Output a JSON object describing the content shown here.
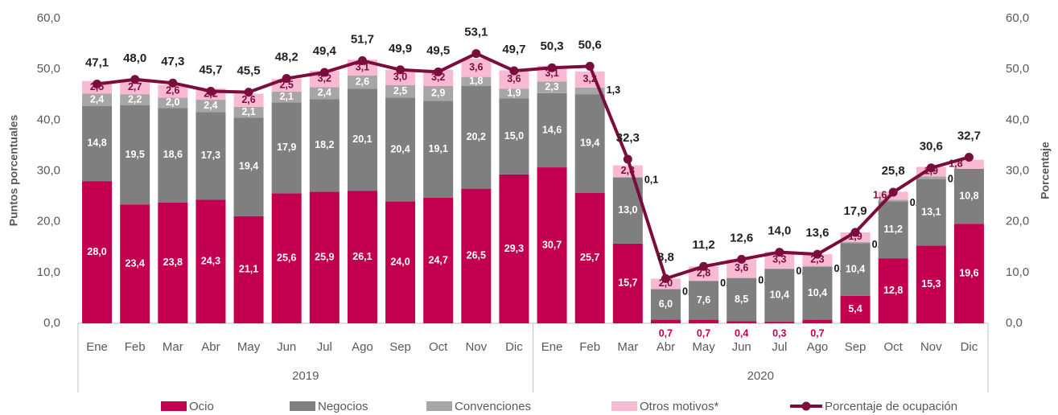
{
  "chart_data": {
    "type": "bar",
    "y_label": "Puntos porcentuales",
    "y2_label": "Porcentaje",
    "categories": [
      "Ene",
      "Feb",
      "Mar",
      "Abr",
      "May",
      "Jun",
      "Jul",
      "Ago",
      "Sep",
      "Oct",
      "Nov",
      "Dic",
      "Ene",
      "Feb",
      "Mar",
      "Abr",
      "May",
      "Jun",
      "Jul",
      "Ago",
      "Sep",
      "Oct",
      "Nov",
      "Dic"
    ],
    "groups": [
      "2019",
      "2020"
    ],
    "ylim": [
      0,
      60
    ],
    "yticks": [
      {
        "value": 0,
        "label": "0,0"
      },
      {
        "value": 10,
        "label": "10,0"
      },
      {
        "value": 20,
        "label": "20,0"
      },
      {
        "value": 30,
        "label": "30,0"
      },
      {
        "value": 40,
        "label": "40,0"
      },
      {
        "value": 50,
        "label": "50,0"
      },
      {
        "value": 60,
        "label": "60,0"
      }
    ],
    "y2lim": [
      0,
      60
    ],
    "y2ticks": [
      {
        "value": 0,
        "label": "0,0"
      },
      {
        "value": 10,
        "label": "10,0"
      },
      {
        "value": 20,
        "label": "20,0"
      },
      {
        "value": 30,
        "label": "30,0"
      },
      {
        "value": 40,
        "label": "40,0"
      },
      {
        "value": 50,
        "label": "50,0"
      },
      {
        "value": 60,
        "label": "60,0"
      }
    ],
    "series": [
      {
        "name": "Ocio",
        "type": "bar",
        "color": "#c3004f",
        "values": [
          28.0,
          23.4,
          23.8,
          24.3,
          21.1,
          25.6,
          25.9,
          26.1,
          24.0,
          24.7,
          26.5,
          29.3,
          30.7,
          25.7,
          15.7,
          0.7,
          0.7,
          0.4,
          0.3,
          0.7,
          5.4,
          12.8,
          15.3,
          19.6
        ],
        "value_labels": [
          "28,0",
          "23,4",
          "23,8",
          "24,3",
          "21,1",
          "25,6",
          "25,9",
          "26,1",
          "24,0",
          "24,7",
          "26,5",
          "29,3",
          "30,7",
          "25,7",
          "15,7",
          "0,7",
          "0,7",
          "0,4",
          "0,3",
          "0,7",
          "5,4",
          "12,8",
          "15,3",
          "19,6"
        ]
      },
      {
        "name": "Negocios",
        "type": "bar",
        "color": "#7f7f7f",
        "values": [
          14.8,
          19.5,
          18.6,
          17.3,
          19.4,
          17.9,
          18.2,
          20.1,
          20.4,
          19.1,
          20.2,
          15.0,
          14.6,
          19.4,
          13.0,
          6.0,
          7.6,
          8.5,
          10.4,
          10.4,
          10.4,
          11.2,
          13.1,
          10.8
        ],
        "value_labels": [
          "14,8",
          "19,5",
          "18,6",
          "17,3",
          "19,4",
          "17,9",
          "18,2",
          "20,1",
          "20,4",
          "19,1",
          "20,2",
          "15,0",
          "14,6",
          "19,4",
          "13,0",
          "6,0",
          "7,6",
          "8,5",
          "10,4",
          "10,4",
          "10,4",
          "11,2",
          "13,1",
          "10,8"
        ]
      },
      {
        "name": "Convenciones",
        "type": "bar",
        "color": "#a6a6a6",
        "values": [
          2.4,
          2.2,
          2.0,
          2.4,
          2.1,
          2.1,
          2.4,
          2.6,
          2.5,
          2.9,
          1.8,
          1.9,
          2.3,
          1.3,
          0.1,
          0.1,
          0.1,
          0.1,
          0.1,
          0.2,
          0.2,
          0.3,
          0.5,
          null
        ],
        "value_labels": [
          "2,4",
          "2,2",
          "2,0",
          "2,4",
          "2,1",
          "2,1",
          "2,4",
          "2,6",
          "2,5",
          "2,9",
          "1,8",
          "1,9",
          "2,3",
          "1,3",
          "0,1",
          "0,1",
          "0,1",
          "0,1",
          "0,1",
          "0,2",
          "0,2",
          "0,3",
          "0,5",
          null
        ]
      },
      {
        "name": "Otros motivos*",
        "type": "bar",
        "color": "#f8b9d3",
        "values": [
          2.5,
          2.7,
          2.6,
          2.2,
          2.6,
          2.5,
          3.2,
          3.1,
          3.0,
          3.2,
          3.6,
          3.6,
          3.1,
          3.2,
          2.3,
          2.0,
          2.8,
          3.6,
          3.3,
          2.3,
          1.9,
          1.6,
          1.9,
          1.8
        ],
        "value_labels": [
          "2,5",
          "2,7",
          "2,6",
          "2,2",
          "2,6",
          "2,5",
          "3,2",
          "3,1",
          "3,0",
          "3,2",
          "3,6",
          "3,6",
          "3,1",
          "3,2",
          "2,3",
          "2,0",
          "2,8",
          "3,6",
          "3,3",
          "2,3",
          "1,9",
          "1,6",
          "1,9",
          "1,8"
        ]
      },
      {
        "name": "Porcentaje de ocupación",
        "type": "line",
        "axis": "y2",
        "color": "#7b0d3c",
        "values": [
          47.1,
          48.0,
          47.3,
          45.7,
          45.5,
          48.2,
          49.4,
          51.7,
          49.9,
          49.5,
          53.1,
          49.7,
          50.3,
          50.6,
          32.3,
          8.8,
          11.2,
          12.6,
          14.0,
          13.6,
          17.9,
          25.8,
          30.6,
          32.7
        ],
        "value_labels": [
          "47,1",
          "48,0",
          "47,3",
          "45,7",
          "45,5",
          "48,2",
          "49,4",
          "51,7",
          "49,9",
          "49,5",
          "53,1",
          "49,7",
          "50,3",
          "50,6",
          "32,3",
          "8,8",
          "11,2",
          "12,6",
          "14,0",
          "13,6",
          "17,9",
          "25,8",
          "30,6",
          "32,7"
        ]
      }
    ]
  }
}
